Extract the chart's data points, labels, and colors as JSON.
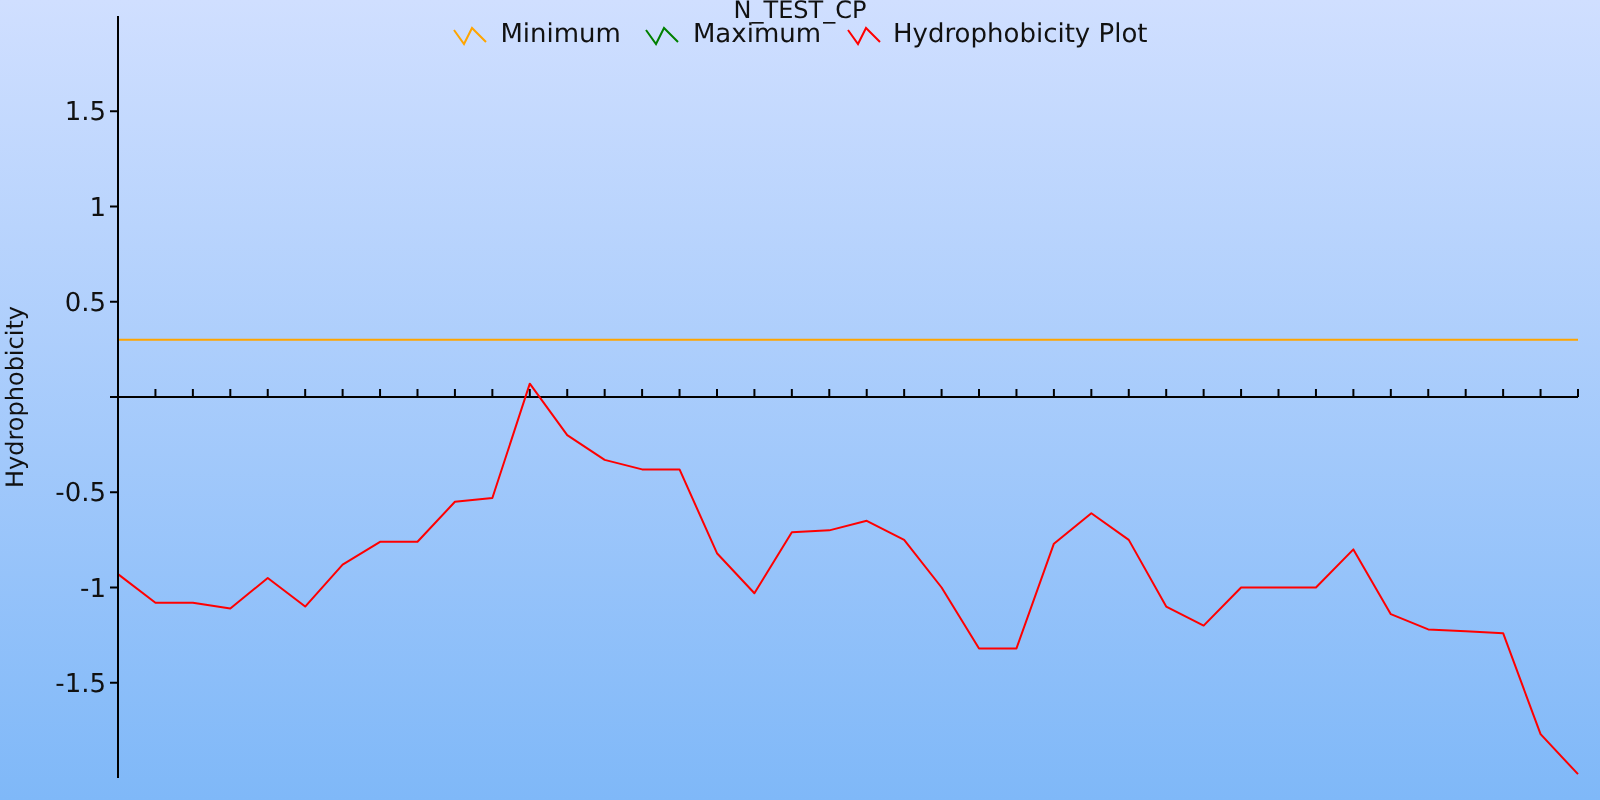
{
  "chart_data": {
    "type": "line",
    "title": "N_TEST_CP",
    "ylabel": "Hydrophobicity",
    "categories": [
      null,
      null,
      null,
      null,
      null,
      null,
      null,
      null,
      null,
      null,
      null,
      null,
      null,
      null,
      null,
      null,
      null,
      null,
      null,
      null,
      null,
      null,
      null,
      null,
      null,
      null,
      null,
      null,
      null,
      null,
      null,
      null,
      null,
      null,
      null,
      null,
      null,
      null,
      null,
      null
    ],
    "series": [
      {
        "name": "Minimum",
        "color": "#ffa500",
        "values": [
          0.3,
          0.3,
          0.3,
          0.3,
          0.3,
          0.3,
          0.3,
          0.3,
          0.3,
          0.3,
          0.3,
          0.3,
          0.3,
          0.3,
          0.3,
          0.3,
          0.3,
          0.3,
          0.3,
          0.3,
          0.3,
          0.3,
          0.3,
          0.3,
          0.3,
          0.3,
          0.3,
          0.3,
          0.3,
          0.3,
          0.3,
          0.3,
          0.3,
          0.3,
          0.3,
          0.3,
          0.3,
          0.3,
          0.3,
          0.3
        ]
      },
      {
        "name": "Maximum",
        "color": "#008000",
        "values": [
          null,
          null,
          null,
          null,
          null,
          null,
          null,
          null,
          null,
          null,
          null,
          null,
          null,
          null,
          null,
          null,
          null,
          null,
          null,
          null,
          null,
          null,
          null,
          null,
          null,
          null,
          null,
          null,
          null,
          null,
          null,
          null,
          null,
          null,
          null,
          null,
          null,
          null,
          null,
          null
        ]
      },
      {
        "name": "Hydrophobicity Plot",
        "color": "#ff0000",
        "values": [
          -0.93,
          -1.08,
          -1.08,
          -1.11,
          -0.95,
          -1.1,
          -0.88,
          -0.76,
          -0.76,
          -0.55,
          -0.53,
          0.07,
          -0.2,
          -0.33,
          -0.38,
          -0.38,
          -0.82,
          -1.03,
          -0.71,
          -0.7,
          -0.65,
          -0.75,
          -1.0,
          -1.32,
          -1.32,
          -0.77,
          -0.61,
          -0.75,
          -1.1,
          -1.2,
          -1.0,
          -1.0,
          -1.0,
          -0.8,
          -1.14,
          -1.22,
          -1.23,
          -1.24,
          -1.77,
          -1.98
        ]
      }
    ],
    "ylim": [
      -2,
      2
    ],
    "yticks": [
      -1.5,
      -1,
      -0.5,
      {
        "value": 0,
        "label": null
      },
      0.5,
      1,
      1.5
    ],
    "ref_lines": [
      {
        "axis": "y",
        "value": 0,
        "color": "#000000"
      }
    ],
    "tick_labels": "y",
    "legend": "top",
    "marker": "none",
    "line_style": "solid"
  }
}
